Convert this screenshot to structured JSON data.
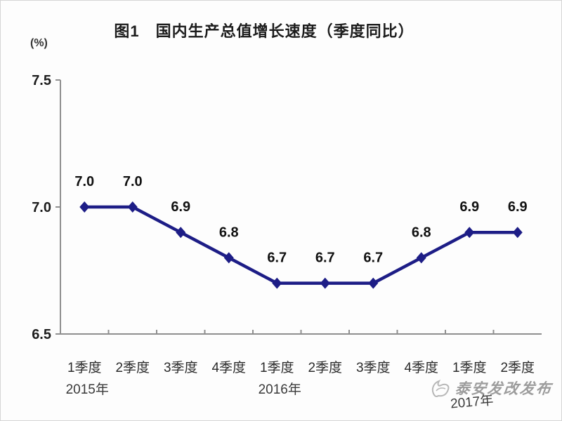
{
  "figure": {
    "title": "图1　国内生产总值增长速度（季度同比）",
    "unit_label": "(%)"
  },
  "watermark": {
    "text": "泰安发改发布",
    "logo_icon": "dove-icon"
  },
  "chart_data": {
    "type": "line",
    "title": "图1 国内生产总值增长速度（季度同比）",
    "xlabel": "",
    "ylabel": "(%)",
    "categories": [
      "1季度",
      "2季度",
      "3季度",
      "4季度",
      "1季度",
      "2季度",
      "3季度",
      "4季度",
      "1季度",
      "2季度"
    ],
    "year_groups": [
      {
        "label": "2015年",
        "category_index": 0
      },
      {
        "label": "2016年",
        "category_index": 4
      },
      {
        "label": "2017年",
        "category_index": 8
      }
    ],
    "series": [
      {
        "name": "国内生产总值增长速度",
        "values": [
          7.0,
          7.0,
          6.9,
          6.8,
          6.7,
          6.7,
          6.7,
          6.8,
          6.9,
          6.9
        ]
      }
    ],
    "data_labels": [
      "7.0",
      "7.0",
      "6.9",
      "6.8",
      "6.7",
      "6.7",
      "6.7",
      "6.8",
      "6.9",
      "6.9"
    ],
    "ylim": [
      6.5,
      7.5
    ],
    "yticks": [
      {
        "value": 7.5,
        "label": "7.5"
      },
      {
        "value": 7.0,
        "label": "7.0"
      },
      {
        "value": 6.5,
        "label": "6.5"
      }
    ],
    "grid": false,
    "legend": "none",
    "marker": "diamond",
    "line_color": "#1d1d86",
    "axis_color": "#8f8f8f",
    "label_color": "#111111"
  }
}
